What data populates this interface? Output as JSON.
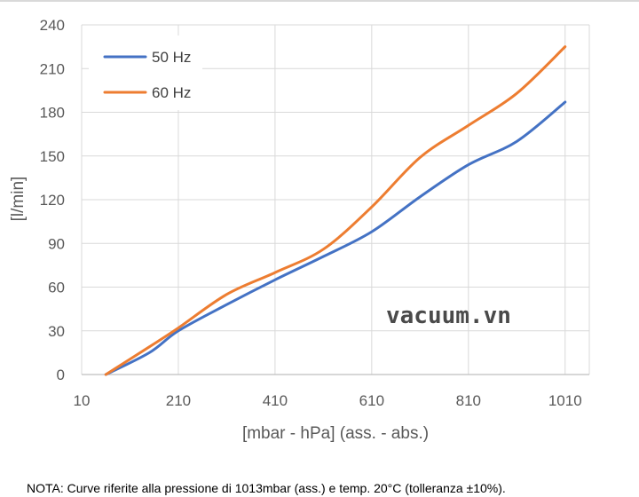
{
  "chart_data": {
    "type": "line",
    "title": "",
    "xlabel": "[mbar - hPa] (ass. - abs.)",
    "ylabel": "[l/min]",
    "xlim": [
      10,
      1060
    ],
    "ylim": [
      0,
      240
    ],
    "x_ticks": [
      10,
      210,
      410,
      610,
      810,
      1010
    ],
    "y_ticks": [
      0,
      30,
      60,
      90,
      120,
      150,
      180,
      210,
      240
    ],
    "grid": true,
    "legend_position": "top-left",
    "series": [
      {
        "name": "50 Hz",
        "color": "#4472c4",
        "x": [
          60,
          150,
          210,
          310,
          410,
          510,
          610,
          710,
          810,
          910,
          1010
        ],
        "y": [
          0,
          15,
          30,
          48,
          65,
          81,
          98,
          122,
          144,
          160,
          187
        ]
      },
      {
        "name": "60 Hz",
        "color": "#ed7d31",
        "x": [
          60,
          150,
          210,
          310,
          410,
          510,
          610,
          710,
          810,
          910,
          1010
        ],
        "y": [
          0,
          19,
          32,
          55,
          70,
          86,
          115,
          149,
          171,
          193,
          225
        ]
      }
    ]
  },
  "watermark": "vacuum.vn",
  "note": "NOTA:  Curve riferite alla pressione di 1013mbar (ass.) e temp. 20°C (tolleranza ±10%)."
}
